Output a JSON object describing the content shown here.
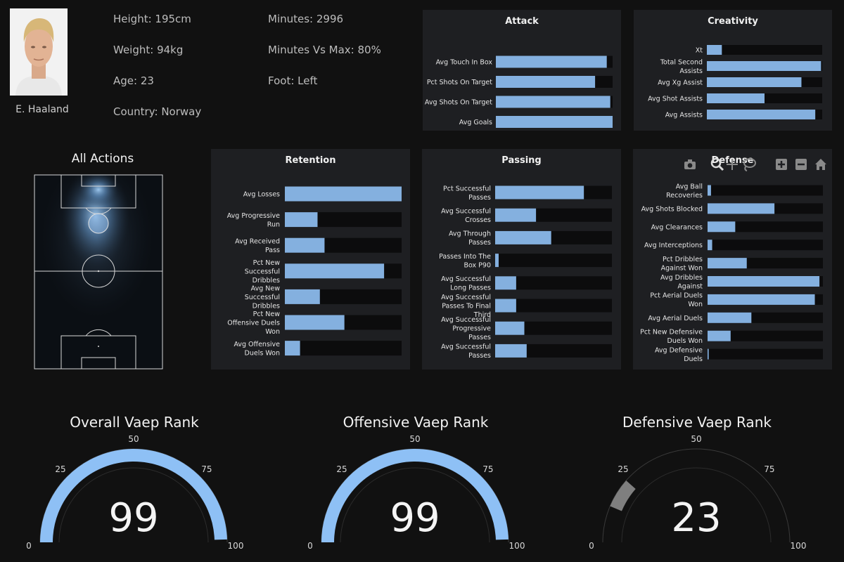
{
  "player": {
    "name": "E. Haaland",
    "info_col1": [
      "Height: 195cm",
      "Weight: 94kg",
      "Age: 23",
      "Country: Norway"
    ],
    "info_col2": [
      "Minutes: 2996",
      "Minutes Vs Max: 80%",
      "Foot: Left"
    ]
  },
  "pitch": {
    "title": "All Actions"
  },
  "modebar_icons": [
    "camera-icon",
    "zoom-icon",
    "pan-icon",
    "lasso-icon",
    "zoom-in-icon",
    "zoom-out-icon",
    "home-icon"
  ],
  "colors": {
    "bar": "#84b0df",
    "gauge_high": "#8ec0f5",
    "gauge_low": "#7f7f7f",
    "panel": "#1e1f22",
    "background": "#111111"
  },
  "chart_data": [
    {
      "type": "bar",
      "orientation": "horizontal",
      "title": "Attack",
      "xlim": [
        0,
        1
      ],
      "categories": [
        "Avg Touch In Box",
        "Pct Shots On Target",
        "Avg Shots On Target",
        "Avg Goals"
      ],
      "values": [
        0.95,
        0.85,
        0.98,
        1.0
      ]
    },
    {
      "type": "bar",
      "orientation": "horizontal",
      "title": "Creativity",
      "xlim": [
        0,
        1
      ],
      "categories": [
        "Xt",
        "Total Second Assists",
        "Avg Xg Assist",
        "Avg Shot Assists",
        "Avg Assists"
      ],
      "values": [
        0.13,
        0.99,
        0.82,
        0.5,
        0.94
      ]
    },
    {
      "type": "bar",
      "orientation": "horizontal",
      "title": "Retention",
      "xlim": [
        0,
        1
      ],
      "categories": [
        "Avg Losses",
        "Avg Progressive Run",
        "Avg Received Pass",
        "Pct New Successful Dribbles",
        "Avg New Successful Dribbles",
        "Pct New Offensive Duels Won",
        "Avg Offensive Duels Won"
      ],
      "values": [
        1.0,
        0.28,
        0.34,
        0.85,
        0.3,
        0.51,
        0.13
      ]
    },
    {
      "type": "bar",
      "orientation": "horizontal",
      "title": "Passing",
      "xlim": [
        0,
        1
      ],
      "categories": [
        "Pct Successful Passes",
        "Avg Successful Crosses",
        "Avg Through Passes",
        "Passes Into The Box P90",
        "Avg Successful Long Passes",
        "Avg Successful Passes To Final Third",
        "Avg Successful Progressive Passes",
        "Avg Successful Passes"
      ],
      "values": [
        0.76,
        0.35,
        0.48,
        0.03,
        0.18,
        0.18,
        0.25,
        0.27
      ]
    },
    {
      "type": "bar",
      "orientation": "horizontal",
      "title": "Defense",
      "xlim": [
        0,
        1
      ],
      "categories": [
        "Avg Ball Recoveries",
        "Avg Shots Blocked",
        "Avg Clearances",
        "Avg Interceptions",
        "Pct Dribbles Against Won",
        "Avg Dribbles Against",
        "Pct Aerial Duels Won",
        "Avg Aerial Duels",
        "Pct New Defensive Duels Won",
        "Avg Defensive Duels"
      ],
      "values": [
        0.03,
        0.58,
        0.24,
        0.04,
        0.34,
        0.97,
        0.93,
        0.38,
        0.2,
        0.01
      ]
    },
    {
      "type": "gauge",
      "title": "Overall Vaep Rank",
      "value": 99,
      "range": [
        0,
        100
      ],
      "ticks": [
        0,
        25,
        50,
        75,
        100
      ]
    },
    {
      "type": "gauge",
      "title": "Offensive Vaep Rank",
      "value": 99,
      "range": [
        0,
        100
      ],
      "ticks": [
        0,
        25,
        50,
        75,
        100
      ]
    },
    {
      "type": "gauge",
      "title": "Defensive Vaep Rank",
      "value": 23,
      "range": [
        0,
        100
      ],
      "ticks": [
        0,
        25,
        50,
        75,
        100
      ]
    }
  ]
}
